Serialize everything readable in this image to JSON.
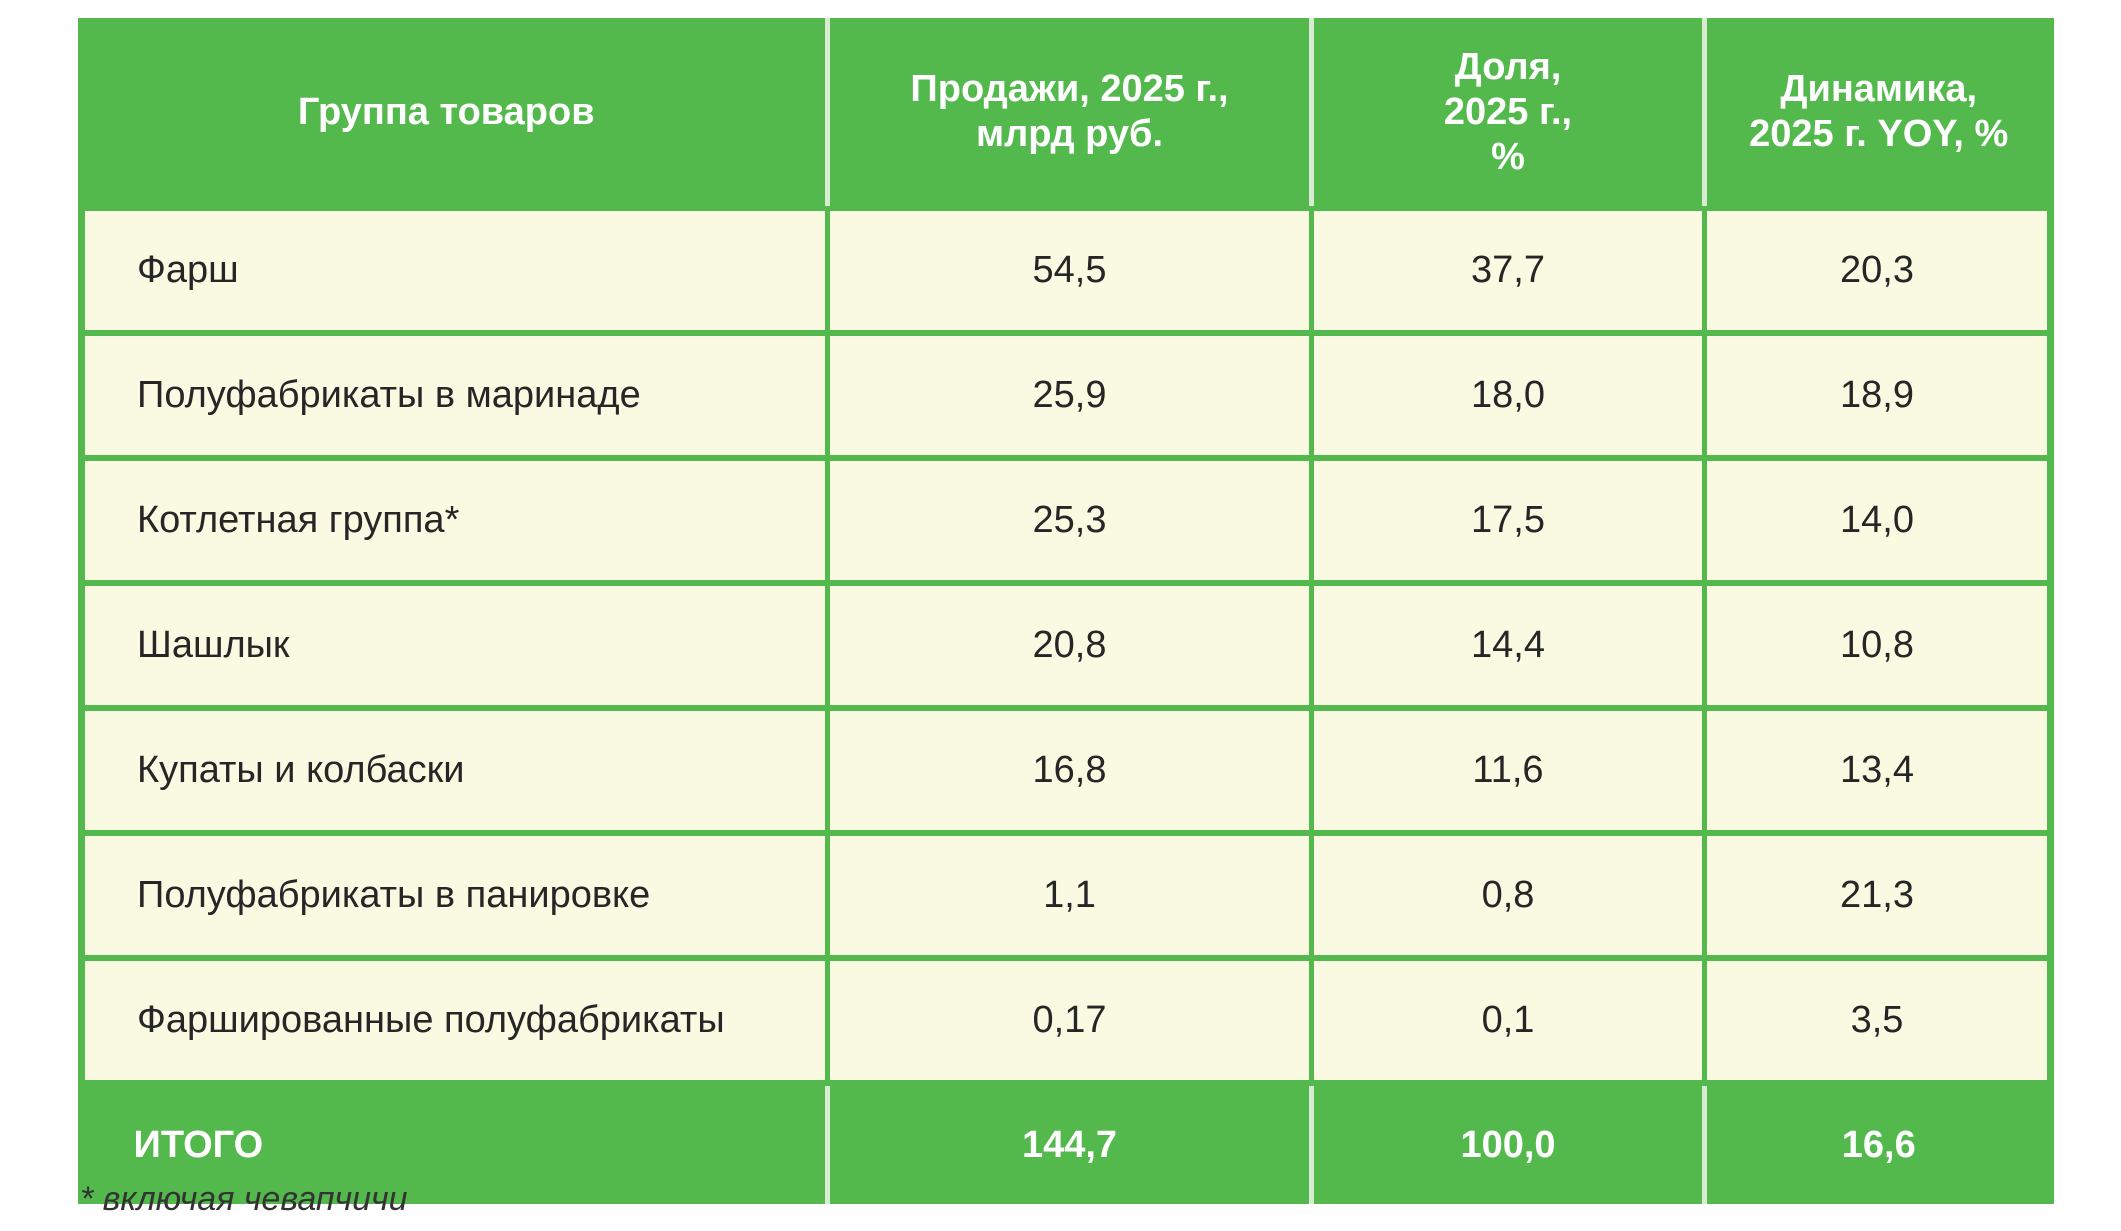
{
  "table": {
    "headers": {
      "group_line1": "Группа товаров",
      "sales_line1": "Продажи, 2025 г.,",
      "sales_line2": "млрд руб.",
      "share_line1": "Доля,",
      "share_line2": "2025 г.,",
      "share_line3": "%",
      "dynamics_line1": "Динамика,",
      "dynamics_line2": "2025 г. YOY, %"
    },
    "rows": [
      {
        "group": "Фарш",
        "sales": "54,5",
        "share": "37,7",
        "dynamics": "20,3"
      },
      {
        "group": "Полуфабрикаты в маринаде",
        "sales": "25,9",
        "share": "18,0",
        "dynamics": "18,9"
      },
      {
        "group": "Котлетная группа*",
        "sales": "25,3",
        "share": "17,5",
        "dynamics": "14,0"
      },
      {
        "group": "Шашлык",
        "sales": "20,8",
        "share": "14,4",
        "dynamics": "10,8"
      },
      {
        "group": "Купаты и колбаски",
        "sales": "16,8",
        "share": "11,6",
        "dynamics": "13,4"
      },
      {
        "group": "Полуфабрикаты в панировке",
        "sales": "1,1",
        "share": "0,8",
        "dynamics": "21,3"
      },
      {
        "group": "Фаршированные полуфабрикаты",
        "sales": "0,17",
        "share": "0,1",
        "dynamics": "3,5"
      }
    ],
    "total": {
      "group": "ИТОГО",
      "sales": "144,7",
      "share": "100,0",
      "dynamics": "16,6"
    }
  },
  "footnote": "* включая чевапчичи",
  "colors": {
    "header_green": "#53b94d",
    "row_cream": "#fafae3",
    "divider_light": "#d8ecd4"
  }
}
